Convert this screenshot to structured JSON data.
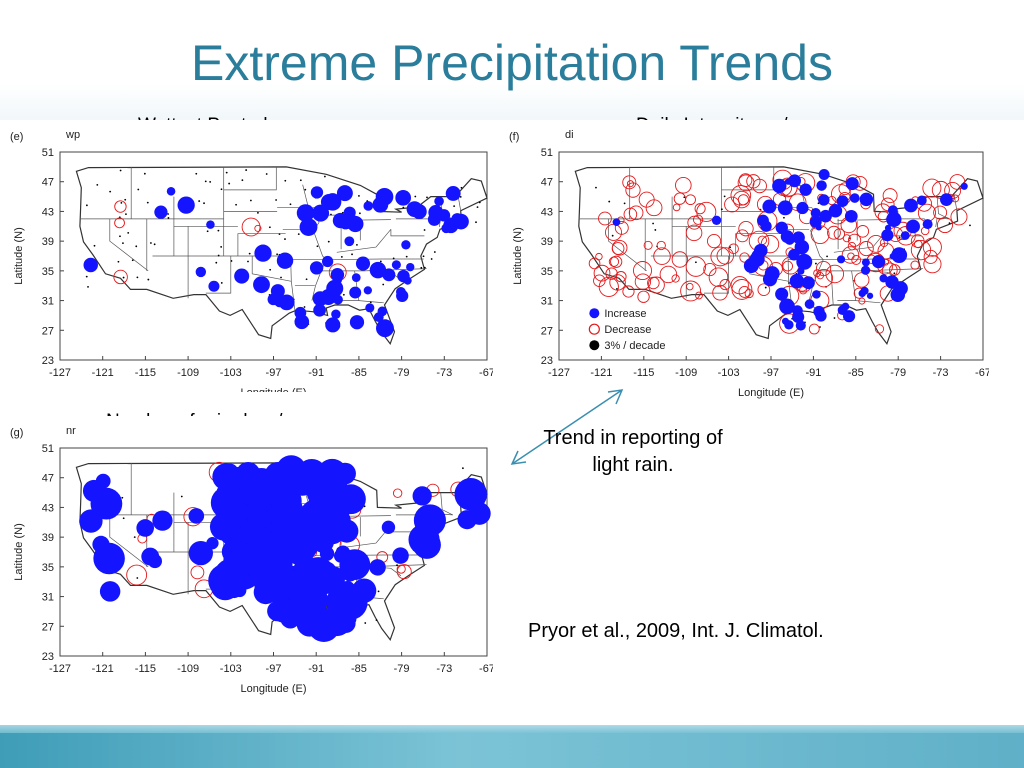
{
  "slide": {
    "title": "Extreme Precipitation Trends",
    "note": "Trend in reporting of light rain.",
    "citation": "Pryor et al., 2009, Int. J. Climatol."
  },
  "colors": {
    "title": "#2a7e9c",
    "increase": "#1414ff",
    "decrease": "#e31a1c",
    "station": "#000000"
  },
  "panels": [
    {
      "caption": "Wettest Pentad",
      "panel_letter": "(e)",
      "code": "wp",
      "show_legend": false
    },
    {
      "caption": "Daily Intensity = r/nr",
      "panel_letter": "(f)",
      "code": "di",
      "show_legend": true
    },
    {
      "caption": "Number of rain days/year",
      "panel_letter": "(g)",
      "code": "nr",
      "show_legend": false
    }
  ],
  "axes": {
    "xlabel": "Longitude (E)",
    "ylabel": "Latitude (N)",
    "x_ticks": [
      "-127",
      "-121",
      "-115",
      "-109",
      "-103",
      "-97",
      "-91",
      "-85",
      "-79",
      "-73",
      "-67"
    ],
    "y_ticks": [
      "51",
      "47",
      "43",
      "39",
      "35",
      "31",
      "27",
      "23"
    ],
    "xlim": [
      -127,
      -67
    ],
    "ylim": [
      23,
      51
    ]
  },
  "legend": [
    {
      "label": "Increase",
      "style": "filled-blue"
    },
    {
      "label": "Decrease",
      "style": "open-red"
    },
    {
      "label": "3% / decade",
      "style": "filled-black"
    }
  ]
}
